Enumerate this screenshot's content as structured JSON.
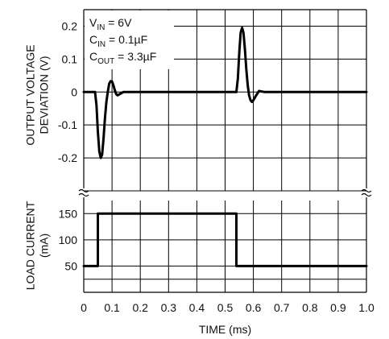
{
  "chart_data": [
    {
      "type": "line",
      "panel": "top",
      "ylabel_lines": [
        "OUTPUT VOLTAGE",
        "DEVIATION (V)"
      ],
      "ylim": [
        -0.3,
        0.25
      ],
      "yticks": [
        0.2,
        0.1,
        0,
        -0.1,
        -0.2
      ],
      "ytick_labels": [
        "0.2",
        "0.1",
        "0",
        "-0.1",
        "-0.2"
      ],
      "xlim": [
        0,
        1.0
      ],
      "grid": true,
      "annotations": [
        {
          "id": "vin",
          "main": "V",
          "sub": "IN",
          "rest": " = 6V"
        },
        {
          "id": "cin",
          "main": "C",
          "sub": "IN",
          "rest": " = 0.1µF"
        },
        {
          "id": "cout",
          "main": "C",
          "sub": "OUT",
          "rest": " = 3.3µF"
        }
      ],
      "series": [
        {
          "x": [
            0,
            0.04,
            0.045,
            0.05,
            0.055,
            0.06,
            0.065,
            0.07,
            0.075,
            0.08,
            0.085,
            0.09,
            0.095,
            0.1,
            0.105,
            0.11,
            0.115,
            0.12,
            0.13,
            0.14,
            0.16,
            0.2,
            0.3,
            0.4,
            0.5,
            0.54,
            0.545,
            0.55,
            0.555,
            0.56,
            0.565,
            0.57,
            0.575,
            0.58,
            0.585,
            0.59,
            0.595,
            0.6,
            0.61,
            0.62,
            0.64,
            0.7,
            1.0
          ],
          "y": [
            0,
            0,
            -0.04,
            -0.12,
            -0.18,
            -0.2,
            -0.19,
            -0.14,
            -0.08,
            -0.03,
            0.0,
            0.025,
            0.033,
            0.032,
            0.02,
            0.005,
            -0.007,
            -0.01,
            -0.005,
            0,
            0,
            0,
            0,
            0,
            0,
            0,
            0.04,
            0.12,
            0.18,
            0.195,
            0.18,
            0.13,
            0.07,
            0.02,
            -0.01,
            -0.025,
            -0.03,
            -0.025,
            -0.01,
            0.003,
            0,
            0,
            0
          ]
        }
      ]
    },
    {
      "type": "line",
      "panel": "bottom",
      "ylabel_lines": [
        "LOAD CURRENT",
        "(mA)"
      ],
      "ylim": [
        0,
        175
      ],
      "yticks": [
        150,
        100,
        50
      ],
      "ytick_labels": [
        "150",
        "100",
        "50"
      ],
      "xlabel": "TIME (ms)",
      "xlim": [
        0,
        1.0
      ],
      "xticks": [
        0,
        0.1,
        0.2,
        0.3,
        0.4,
        0.5,
        0.6,
        0.7,
        0.8,
        0.9,
        1.0
      ],
      "xtick_labels": [
        "0",
        "0.1",
        "0.2",
        "0.3",
        "0.4",
        "0.5",
        "0.6",
        "0.7",
        "0.8",
        "0.9",
        "1.0"
      ],
      "grid": true,
      "series": [
        {
          "x": [
            0,
            0.05,
            0.05,
            0.54,
            0.54,
            1.0
          ],
          "y": [
            50,
            50,
            150,
            150,
            50,
            50
          ]
        }
      ]
    }
  ]
}
